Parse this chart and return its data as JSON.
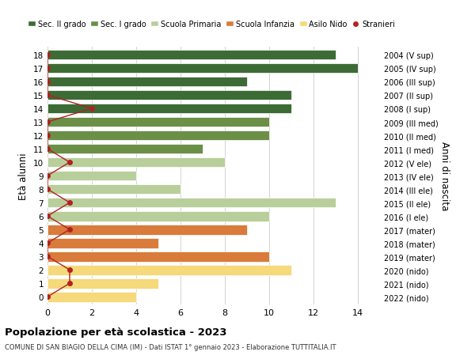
{
  "ages": [
    18,
    17,
    16,
    15,
    14,
    13,
    12,
    11,
    10,
    9,
    8,
    7,
    6,
    5,
    4,
    3,
    2,
    1,
    0
  ],
  "right_labels": [
    "2004 (V sup)",
    "2005 (IV sup)",
    "2006 (III sup)",
    "2007 (II sup)",
    "2008 (I sup)",
    "2009 (III med)",
    "2010 (II med)",
    "2011 (I med)",
    "2012 (V ele)",
    "2013 (IV ele)",
    "2014 (III ele)",
    "2015 (II ele)",
    "2016 (I ele)",
    "2017 (mater)",
    "2018 (mater)",
    "2019 (mater)",
    "2020 (nido)",
    "2021 (nido)",
    "2022 (nido)"
  ],
  "bar_values": [
    13,
    14,
    9,
    11,
    11,
    10,
    10,
    7,
    8,
    4,
    6,
    13,
    10,
    9,
    5,
    10,
    11,
    5,
    4
  ],
  "bar_colors": [
    "#3d6b35",
    "#3d6b35",
    "#3d6b35",
    "#3d6b35",
    "#3d6b35",
    "#6b8f47",
    "#6b8f47",
    "#6b8f47",
    "#b8cf9b",
    "#b8cf9b",
    "#b8cf9b",
    "#b8cf9b",
    "#b8cf9b",
    "#d97b3a",
    "#d97b3a",
    "#d97b3a",
    "#f5d97a",
    "#f5d97a",
    "#f5d97a"
  ],
  "stranieri_values": [
    0,
    0,
    0,
    0,
    2,
    0,
    0,
    0,
    1,
    0,
    0,
    1,
    0,
    1,
    0,
    0,
    1,
    1,
    0
  ],
  "stranieri_color": "#b22222",
  "legend_labels": [
    "Sec. II grado",
    "Sec. I grado",
    "Scuola Primaria",
    "Scuola Infanzia",
    "Asilo Nido",
    "Stranieri"
  ],
  "legend_colors": [
    "#3d6b35",
    "#6b8f47",
    "#b8cf9b",
    "#d97b3a",
    "#f5d97a",
    "#b22222"
  ],
  "ylabel_left": "Età alunni",
  "ylabel_right": "Anni di nascita",
  "xlim": [
    0,
    15
  ],
  "xticks": [
    0,
    2,
    4,
    6,
    8,
    10,
    12,
    14
  ],
  "title": "Popolazione per età scolastica - 2023",
  "subtitle": "COMUNE DI SAN BIAGIO DELLA CIMA (IM) - Dati ISTAT 1° gennaio 2023 - Elaborazione TUTTITALIA.IT",
  "bg_color": "#ffffff",
  "bar_edge_color": "#ffffff",
  "grid_color": "#cccccc"
}
